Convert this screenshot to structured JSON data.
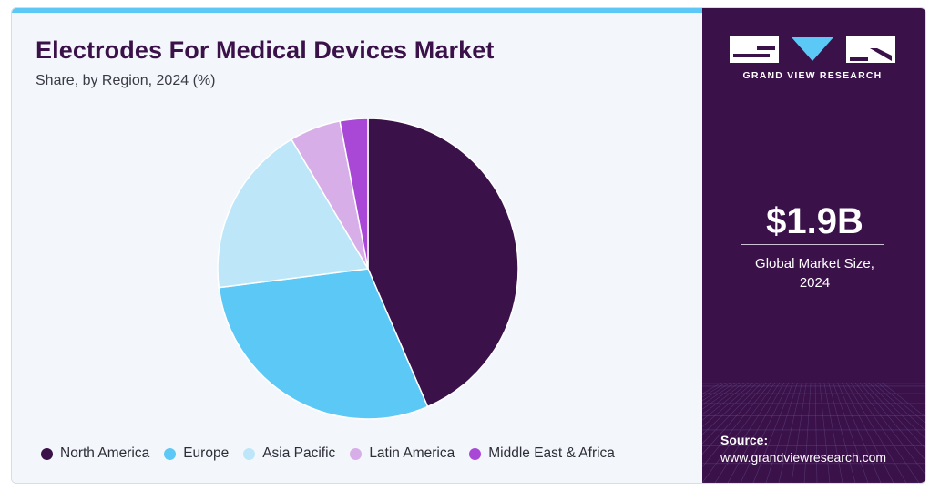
{
  "header": {
    "title": "Electrodes For Medical Devices Market",
    "subtitle": "Share, by Region, 2024 (%)"
  },
  "chart_data": {
    "type": "pie",
    "categories": [
      "North America",
      "Europe",
      "Asia Pacific",
      "Latin America",
      "Middle East & Africa"
    ],
    "values": [
      43.5,
      29.5,
      18.5,
      5.5,
      3.0
    ],
    "colors": [
      "#3a1148",
      "#5bc8f5",
      "#bde7f8",
      "#d7aee8",
      "#a948d6"
    ],
    "legend_position": "bottom"
  },
  "brand": {
    "name": "GRAND VIEW RESEARCH",
    "accent": "#5bc8f5",
    "panel_color": "#3a1148"
  },
  "summary": {
    "value": "$1.9B",
    "caption_line1": "Global Market Size,",
    "caption_line2": "2024"
  },
  "source": {
    "label": "Source:",
    "url": "www.grandviewresearch.com"
  }
}
